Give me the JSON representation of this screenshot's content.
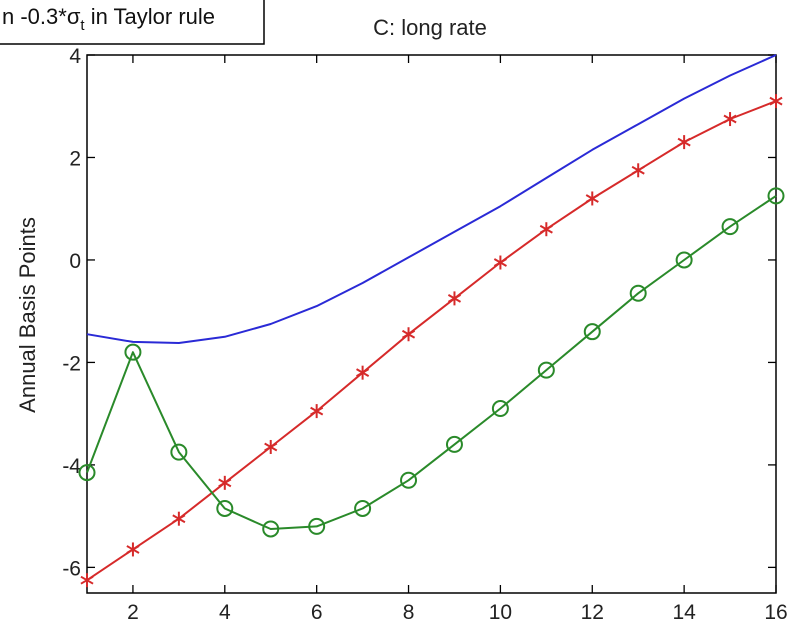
{
  "legend_fragment": {
    "prefix": "n -0.3*",
    "sigma": "σ",
    "sub": "t",
    "suffix": " in Taylor rule"
  },
  "chart_data": {
    "type": "line",
    "title": "C: long rate",
    "xlabel": "",
    "ylabel": "Annual Basis Points",
    "xlim": [
      1,
      16
    ],
    "ylim": [
      -6.5,
      4
    ],
    "xticks": [
      2,
      4,
      6,
      8,
      10,
      12,
      14,
      16
    ],
    "yticks": [
      -6,
      -4,
      -2,
      0,
      2,
      4
    ],
    "grid": false,
    "series": [
      {
        "color": "#2a2ad6",
        "marker": "none",
        "x": [
          1,
          2,
          3,
          4,
          5,
          6,
          7,
          8,
          9,
          10,
          11,
          12,
          13,
          14,
          15,
          16
        ],
        "values": [
          -1.45,
          -1.6,
          -1.62,
          -1.5,
          -1.25,
          -0.9,
          -0.45,
          0.05,
          0.55,
          1.05,
          1.6,
          2.15,
          2.65,
          3.15,
          3.6,
          4.0
        ]
      },
      {
        "color": "#d62a2a",
        "marker": "asterisk",
        "x": [
          1,
          2,
          3,
          4,
          5,
          6,
          7,
          8,
          9,
          10,
          11,
          12,
          13,
          14,
          15,
          16
        ],
        "values": [
          -6.25,
          -5.65,
          -5.05,
          -4.35,
          -3.65,
          -2.95,
          -2.2,
          -1.45,
          -0.75,
          -0.05,
          0.6,
          1.2,
          1.75,
          2.3,
          2.75,
          3.1
        ]
      },
      {
        "color": "#2a8a2a",
        "marker": "circle",
        "x": [
          1,
          2,
          3,
          4,
          5,
          6,
          7,
          8,
          9,
          10,
          11,
          12,
          13,
          14,
          15,
          16
        ],
        "values": [
          -4.15,
          -1.8,
          -3.75,
          -4.85,
          -5.25,
          -5.2,
          -4.85,
          -4.3,
          -3.6,
          -2.9,
          -2.15,
          -1.4,
          -0.65,
          0.0,
          0.65,
          1.25
        ]
      }
    ]
  }
}
